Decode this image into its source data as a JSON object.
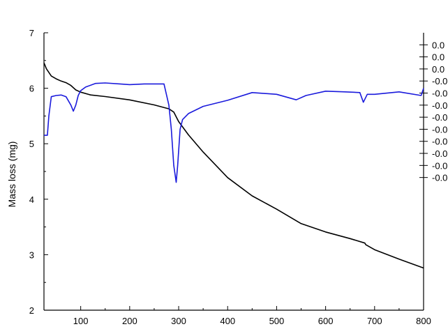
{
  "chart_data": {
    "type": "line",
    "title": "",
    "xlabel": "",
    "ylabel": "Mass loss (mg)",
    "y2label": "",
    "xlim": [
      25,
      800
    ],
    "ylim": [
      2,
      7
    ],
    "y2lim": [
      -0.0105,
      0.001
    ],
    "x_ticks": [
      100,
      200,
      300,
      400,
      500,
      600,
      700,
      800
    ],
    "x_tick_labels": [
      "100",
      "200",
      "300",
      "400",
      "500",
      "600",
      "700",
      "800"
    ],
    "y_ticks": [
      2,
      3,
      4,
      5,
      6,
      7
    ],
    "y_tick_labels": [
      "2",
      "3",
      "4",
      "5",
      "6",
      "7"
    ],
    "y2_ticks": [
      0.0005,
      0.0,
      -0.0005,
      -0.001,
      -0.0015,
      -0.002,
      -0.0025,
      -0.003,
      -0.0035,
      -0.004,
      -0.0045,
      -0.005
    ],
    "y2_tick_labels": [
      "0.0",
      "0.0",
      "0.0",
      "-0.0",
      "-0.0",
      "-0.0",
      "-0.0",
      "-0.0",
      "-0.0",
      "-0.0",
      "-0.0",
      "-0.0"
    ],
    "grid": false,
    "legend": "none",
    "series": [
      {
        "axis": "left",
        "color": "#000000",
        "x": [
          25,
          30,
          40,
          50,
          60,
          70,
          80,
          90,
          100,
          120,
          150,
          200,
          250,
          280,
          290,
          300,
          320,
          350,
          400,
          450,
          500,
          550,
          600,
          650,
          680,
          682,
          700,
          750,
          800
        ],
        "y": [
          6.46,
          6.35,
          6.22,
          6.17,
          6.13,
          6.1,
          6.05,
          5.97,
          5.93,
          5.88,
          5.85,
          5.79,
          5.7,
          5.63,
          5.57,
          5.4,
          5.16,
          4.85,
          4.39,
          4.06,
          3.82,
          3.56,
          3.41,
          3.29,
          3.21,
          3.18,
          3.09,
          2.92,
          2.76
        ]
      },
      {
        "axis": "right",
        "color": "#1a1adc",
        "x": [
          25,
          32,
          35,
          40,
          50,
          60,
          70,
          80,
          85,
          90,
          95,
          100,
          110,
          130,
          150,
          180,
          200,
          230,
          250,
          270,
          280,
          285,
          290,
          295,
          298,
          303,
          308,
          320,
          350,
          400,
          450,
          500,
          540,
          560,
          600,
          640,
          670,
          677,
          685,
          700,
          750,
          795,
          800
        ],
        "y": [
          -0.00325,
          -0.00325,
          -0.00245,
          -0.00165,
          -0.0016,
          -0.00158,
          -0.00165,
          -0.002,
          -0.00225,
          -0.002,
          -0.0016,
          -0.0014,
          -0.00125,
          -0.0011,
          -0.00108,
          -0.00112,
          -0.00115,
          -0.00112,
          -0.00112,
          -0.00112,
          -0.002,
          -0.003,
          -0.0045,
          -0.0052,
          -0.0045,
          -0.003,
          -0.0026,
          -0.00235,
          -0.00205,
          -0.0018,
          -0.00148,
          -0.00155,
          -0.00178,
          -0.0016,
          -0.00142,
          -0.00145,
          -0.00148,
          -0.00188,
          -0.00155,
          -0.00155,
          -0.00145,
          -0.0016,
          -0.0013
        ]
      }
    ]
  }
}
